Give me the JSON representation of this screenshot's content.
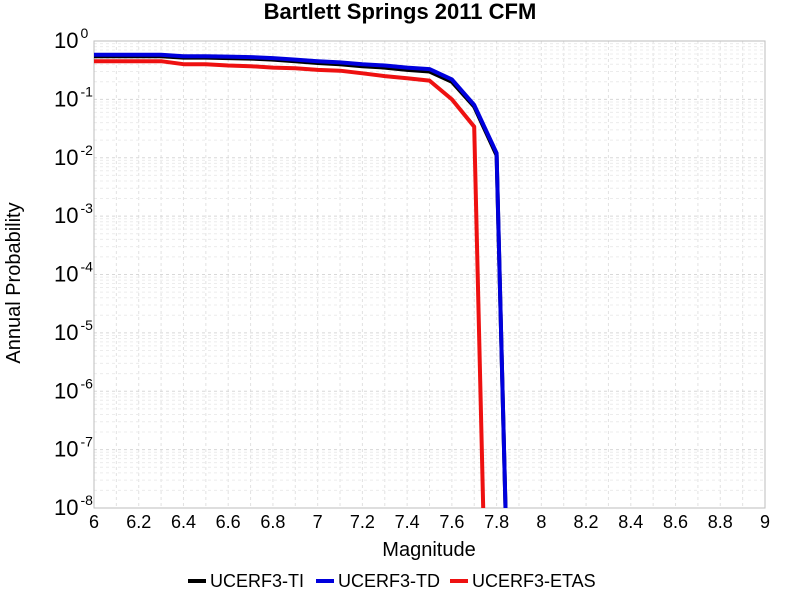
{
  "chart_data": {
    "type": "line",
    "title": "Bartlett Springs 2011 CFM",
    "xlabel": "Magnitude",
    "ylabel": "Annual Probability",
    "xlim": [
      6,
      9
    ],
    "ylim": [
      1e-08,
      1
    ],
    "yscale": "log",
    "grid": true,
    "legend_position": "bottom",
    "x_ticks": [
      "6",
      "6.2",
      "6.4",
      "6.6",
      "6.8",
      "7",
      "7.2",
      "7.4",
      "7.6",
      "7.8",
      "8",
      "8.2",
      "8.4",
      "8.6",
      "8.8",
      "9"
    ],
    "y_ticks": [
      {
        "base": "10",
        "exp": "0"
      },
      {
        "base": "10",
        "exp": "-1"
      },
      {
        "base": "10",
        "exp": "-2"
      },
      {
        "base": "10",
        "exp": "-3"
      },
      {
        "base": "10",
        "exp": "-4"
      },
      {
        "base": "10",
        "exp": "-5"
      },
      {
        "base": "10",
        "exp": "-6"
      },
      {
        "base": "10",
        "exp": "-7"
      },
      {
        "base": "10",
        "exp": "-8"
      }
    ],
    "series": [
      {
        "name": "UCERF3-TI",
        "color": "#000000",
        "x": [
          6.0,
          6.1,
          6.2,
          6.3,
          6.4,
          6.5,
          6.6,
          6.7,
          6.8,
          6.9,
          7.0,
          7.1,
          7.2,
          7.3,
          7.4,
          7.5,
          7.6,
          7.7,
          7.8,
          7.84
        ],
        "y": [
          0.55,
          0.55,
          0.55,
          0.55,
          0.52,
          0.52,
          0.51,
          0.5,
          0.48,
          0.45,
          0.42,
          0.4,
          0.37,
          0.35,
          0.32,
          0.3,
          0.2,
          0.075,
          0.011,
          1e-08
        ]
      },
      {
        "name": "UCERF3-TD",
        "color": "#0000dd",
        "x": [
          6.0,
          6.1,
          6.2,
          6.3,
          6.4,
          6.5,
          6.6,
          6.7,
          6.8,
          6.9,
          7.0,
          7.1,
          7.2,
          7.3,
          7.4,
          7.5,
          7.6,
          7.7,
          7.8,
          7.84
        ],
        "y": [
          0.58,
          0.58,
          0.58,
          0.58,
          0.55,
          0.55,
          0.54,
          0.53,
          0.51,
          0.48,
          0.45,
          0.43,
          0.4,
          0.38,
          0.35,
          0.33,
          0.22,
          0.08,
          0.012,
          1e-08
        ]
      },
      {
        "name": "UCERF3-ETAS",
        "color": "#ee1111",
        "x": [
          6.0,
          6.1,
          6.2,
          6.3,
          6.4,
          6.5,
          6.6,
          6.7,
          6.8,
          6.9,
          7.0,
          7.1,
          7.2,
          7.3,
          7.4,
          7.5,
          7.6,
          7.7,
          7.74
        ],
        "y": [
          0.45,
          0.45,
          0.45,
          0.45,
          0.4,
          0.4,
          0.38,
          0.37,
          0.35,
          0.34,
          0.32,
          0.31,
          0.28,
          0.25,
          0.23,
          0.21,
          0.1,
          0.034,
          1e-08
        ]
      }
    ]
  }
}
